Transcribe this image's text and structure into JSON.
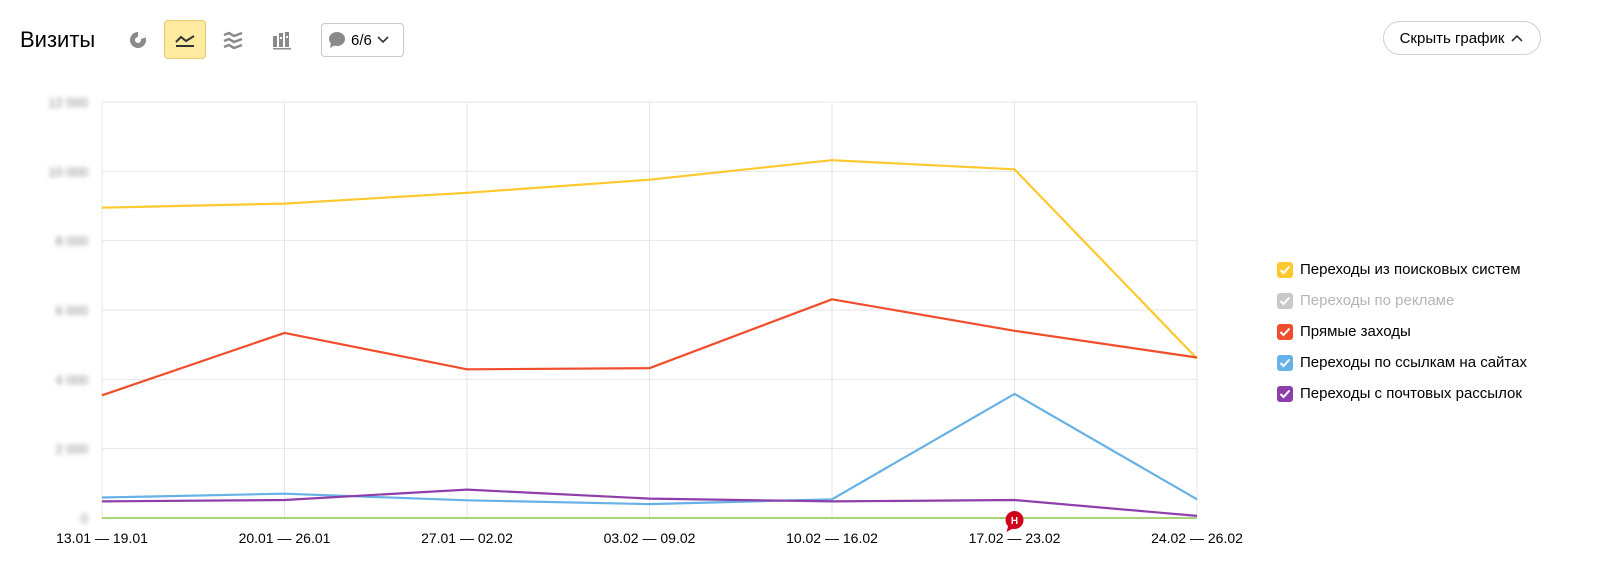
{
  "header": {
    "title": "Визиты",
    "notes_label": "6/6",
    "hide_chart_label": "Скрыть график"
  },
  "toolbar": {
    "icons": [
      "pie-chart-icon",
      "line-chart-icon",
      "area-chart-icon",
      "bar-chart-icon"
    ],
    "active": "line-chart-icon"
  },
  "chart_data": {
    "type": "line",
    "categories": [
      "13.01 — 19.01",
      "20.01 — 26.01",
      "27.01 — 02.02",
      "03.02 — 09.02",
      "10.02 — 16.02",
      "17.02 — 23.02",
      "24.02 — 26.02"
    ],
    "ylim": [
      0,
      12000
    ],
    "y_ticks": [
      "0",
      "2 000",
      "4 000",
      "6 000",
      "8 000",
      "10 000",
      "12 000"
    ],
    "y_ticks_obscured": true,
    "grid": true,
    "legend_position": "right",
    "annotation": {
      "category_index": 5,
      "label": "H",
      "color": "#d0021b"
    },
    "series": [
      {
        "name": "Переходы из поисковых систем",
        "color": "#fdc92f",
        "enabled": true,
        "values": [
          8950,
          9070,
          9380,
          9760,
          10320,
          10060,
          4600
        ]
      },
      {
        "name": "Переходы по рекламе",
        "color": "#8bc34a",
        "enabled": false,
        "values": [
          0,
          0,
          0,
          0,
          0,
          0,
          0
        ]
      },
      {
        "name": "Прямые заходы",
        "color": "#f04d2d",
        "enabled": true,
        "values": [
          3540,
          5340,
          4290,
          4320,
          6310,
          5400,
          4630
        ]
      },
      {
        "name": "Переходы по ссылкам на сайтах",
        "color": "#66b1e6",
        "enabled": true,
        "values": [
          590,
          700,
          510,
          400,
          540,
          3580,
          540
        ]
      },
      {
        "name": "Переходы с почтовых рассылок",
        "color": "#8e3ea8",
        "enabled": true,
        "values": [
          480,
          520,
          820,
          560,
          480,
          520,
          60
        ]
      }
    ]
  }
}
